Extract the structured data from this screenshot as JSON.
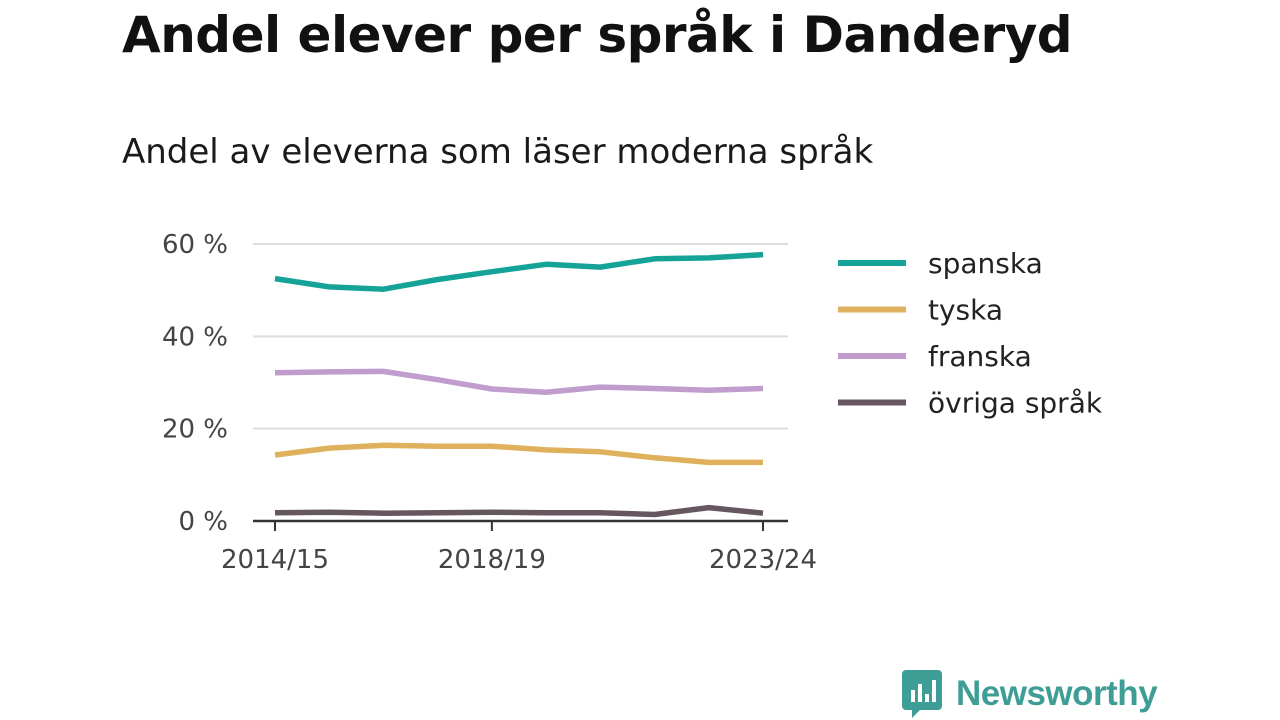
{
  "title": "Andel elever per språk i Danderyd",
  "subtitle": "Andel av eleverna som läser moderna språk",
  "brand": {
    "name": "Newsworthy",
    "color": "#3e9e95"
  },
  "chart_data": {
    "type": "line",
    "x": [
      "2014/15",
      "2015/16",
      "2016/17",
      "2017/18",
      "2018/19",
      "2019/20",
      "2020/21",
      "2021/22",
      "2022/23",
      "2023/24"
    ],
    "x_tick_labels": [
      "2014/15",
      "2018/19",
      "2023/24"
    ],
    "y_ticks": [
      0,
      20,
      40,
      60
    ],
    "y_tick_labels": [
      "0 %",
      "20 %",
      "40 %",
      "60 %"
    ],
    "ylim": [
      0,
      60
    ],
    "grid": true,
    "legend_position": "right",
    "series": [
      {
        "name": "spanska",
        "color": "#15a398",
        "values": [
          52.5,
          50.7,
          50.2,
          52.3,
          54.0,
          55.6,
          55.0,
          56.8,
          57.0,
          57.7
        ]
      },
      {
        "name": "tyska",
        "color": "#dfb15c",
        "values": [
          14.3,
          15.8,
          16.4,
          16.2,
          16.2,
          15.4,
          15.0,
          13.7,
          12.7,
          12.7
        ]
      },
      {
        "name": "franska",
        "color": "#c09dcd",
        "values": [
          32.1,
          32.3,
          32.4,
          30.6,
          28.6,
          27.9,
          29.0,
          28.7,
          28.3,
          28.7
        ]
      },
      {
        "name": "övriga språk",
        "color": "#665660",
        "values": [
          1.8,
          1.9,
          1.7,
          1.8,
          1.9,
          1.8,
          1.8,
          1.4,
          2.9,
          1.7
        ]
      }
    ]
  }
}
